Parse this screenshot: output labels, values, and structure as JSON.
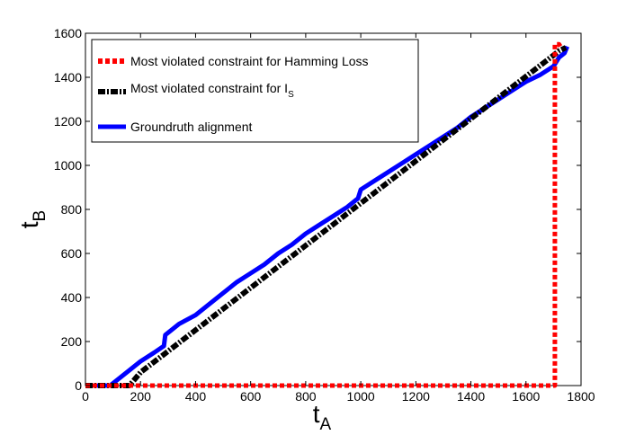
{
  "chart_data": {
    "type": "line",
    "xlabel": {
      "main": "t",
      "sub": "A"
    },
    "ylabel": {
      "main": "t",
      "sub": "B"
    },
    "xlim": [
      0,
      1800
    ],
    "ylim": [
      0,
      1600
    ],
    "xticks": [
      0,
      200,
      400,
      600,
      800,
      1000,
      1200,
      1400,
      1600,
      1800
    ],
    "yticks": [
      0,
      200,
      400,
      600,
      800,
      1000,
      1200,
      1400,
      1600
    ],
    "grid": false,
    "legend_position": "top-left",
    "series": [
      {
        "name": "Most violated constraint for Hamming Loss",
        "legend_label": "Most violated constraint for Hamming Loss",
        "legend_sub": "",
        "color": "#ff0000",
        "style": "dotted",
        "points": [
          [
            0,
            0
          ],
          [
            1700,
            0
          ],
          [
            1705,
            0
          ],
          [
            1705,
            1550
          ],
          [
            1720,
            1550
          ],
          [
            1730,
            1530
          ]
        ]
      },
      {
        "name": "Most violated constraint for I_S",
        "legend_label": "Most violated constraint for I",
        "legend_sub": "S",
        "color": "#000000",
        "style": "dashdot",
        "points": [
          [
            0,
            0
          ],
          [
            160,
            0
          ],
          [
            200,
            60
          ],
          [
            1700,
            1500
          ],
          [
            1720,
            1520
          ],
          [
            1745,
            1535
          ]
        ]
      },
      {
        "name": "Groundruth alignment",
        "legend_label": "Groundruth alignment",
        "legend_sub": "",
        "color": "#0000ff",
        "style": "solid",
        "points": [
          [
            0,
            0
          ],
          [
            90,
            0
          ],
          [
            110,
            20
          ],
          [
            150,
            60
          ],
          [
            200,
            110
          ],
          [
            250,
            150
          ],
          [
            285,
            180
          ],
          [
            290,
            230
          ],
          [
            340,
            280
          ],
          [
            400,
            320
          ],
          [
            450,
            370
          ],
          [
            500,
            420
          ],
          [
            550,
            470
          ],
          [
            600,
            510
          ],
          [
            650,
            550
          ],
          [
            700,
            600
          ],
          [
            750,
            640
          ],
          [
            800,
            690
          ],
          [
            850,
            730
          ],
          [
            900,
            770
          ],
          [
            950,
            810
          ],
          [
            990,
            850
          ],
          [
            1000,
            890
          ],
          [
            1050,
            930
          ],
          [
            1100,
            970
          ],
          [
            1150,
            1010
          ],
          [
            1200,
            1050
          ],
          [
            1250,
            1090
          ],
          [
            1300,
            1130
          ],
          [
            1350,
            1170
          ],
          [
            1400,
            1220
          ],
          [
            1450,
            1260
          ],
          [
            1500,
            1300
          ],
          [
            1550,
            1340
          ],
          [
            1600,
            1380
          ],
          [
            1650,
            1410
          ],
          [
            1700,
            1450
          ],
          [
            1720,
            1490
          ],
          [
            1740,
            1510
          ],
          [
            1750,
            1540
          ]
        ]
      }
    ]
  }
}
